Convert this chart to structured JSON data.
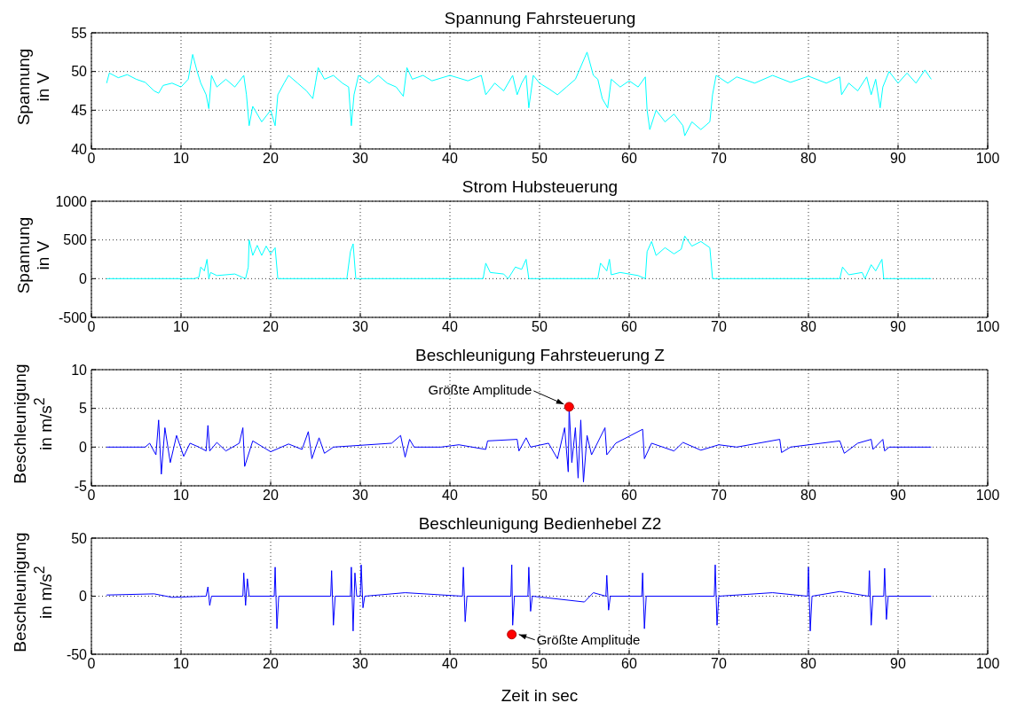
{
  "chart_data": [
    {
      "type": "line",
      "title": "Spannung Fahrsteuerung",
      "ylabel": "Spannung in V",
      "xlim": [
        0,
        100
      ],
      "xticks": [
        0,
        10,
        20,
        30,
        40,
        50,
        60,
        70,
        80,
        90,
        100
      ],
      "ylim": [
        40,
        55
      ],
      "yticks": [
        40,
        45,
        50,
        55
      ],
      "grid": true,
      "marker": "none",
      "line_style": "solid",
      "series": [
        {
          "color": "#00ffff",
          "x": [
            1.7,
            2,
            3,
            4,
            5,
            6,
            7,
            7.5,
            8,
            9,
            10,
            10.8,
            11.3,
            11.8,
            12.2,
            12.8,
            13.1,
            13.4,
            14,
            15,
            16,
            17,
            17.3,
            17.6,
            18,
            19,
            20,
            20.5,
            20.8,
            21.5,
            22,
            23,
            24,
            24.7,
            25,
            25.3,
            26,
            27,
            28,
            28.7,
            29,
            29.3,
            29.8,
            31,
            32,
            33,
            34,
            34.8,
            35.2,
            35.8,
            37,
            38,
            40,
            42,
            43.5,
            44,
            45,
            46,
            47,
            47.5,
            48,
            48.5,
            48.8,
            49.3,
            50,
            51,
            52,
            53,
            54,
            55.3,
            56,
            56.5,
            57,
            57.6,
            58,
            59,
            60,
            61,
            61.8,
            62,
            62.3,
            63,
            64,
            65,
            66,
            66.2,
            67,
            68,
            69,
            69.3,
            69.7,
            71,
            72,
            74,
            76,
            78,
            80,
            82,
            83.5,
            83.7,
            84.5,
            85.5,
            86.5,
            87,
            87.5,
            88,
            88.3,
            89,
            90,
            91,
            92,
            93,
            93.7
          ],
          "values": [
            48.5,
            49.8,
            49.2,
            49.6,
            49,
            48.6,
            47.5,
            47.2,
            48.2,
            48.5,
            48,
            49,
            52.2,
            50,
            48.5,
            47,
            45.2,
            49.5,
            48,
            49,
            48,
            49.5,
            47,
            43,
            45.5,
            43.5,
            45,
            43,
            47,
            48.5,
            49.5,
            48.5,
            47.5,
            46.5,
            48.5,
            50.5,
            49,
            49.5,
            48.5,
            48,
            43,
            47,
            49.5,
            48.5,
            49.5,
            48.5,
            48,
            46.8,
            50.5,
            49,
            49.5,
            48.8,
            49.5,
            48.8,
            49.5,
            47,
            48.5,
            47.5,
            49.5,
            47,
            48.5,
            49.5,
            45.3,
            49.5,
            48.5,
            47.8,
            47,
            48,
            49,
            52.5,
            49.5,
            49,
            46.5,
            45.3,
            49,
            48,
            48.8,
            48,
            49.3,
            45,
            42.5,
            45,
            43.5,
            44.5,
            43,
            41.7,
            43.5,
            42.5,
            43.5,
            47,
            49.5,
            48.5,
            49.3,
            48.5,
            49.5,
            48.6,
            49.4,
            48.5,
            49.3,
            47,
            48.5,
            47.5,
            49.3,
            47,
            49,
            45.3,
            48,
            50,
            48.5,
            49.8,
            48.5,
            50.2,
            49
          ]
        }
      ]
    },
    {
      "type": "line",
      "title": "Strom Hubsteuerung",
      "ylabel": "Spannung in V",
      "xlim": [
        0,
        100
      ],
      "xticks": [
        0,
        10,
        20,
        30,
        40,
        50,
        60,
        70,
        80,
        90,
        100
      ],
      "ylim": [
        -500,
        1000
      ],
      "yticks": [
        -500,
        0,
        500,
        1000
      ],
      "grid": true,
      "marker": "none",
      "line_style": "solid",
      "series": [
        {
          "color": "#00ffff",
          "x": [
            1.7,
            11.5,
            12,
            12.2,
            12.6,
            12.9,
            13.1,
            13.3,
            14,
            16,
            16.8,
            17.2,
            17.5,
            17.6,
            18,
            18.5,
            19,
            19.5,
            20,
            20.5,
            20.8,
            28.5,
            28.9,
            29.2,
            29.5,
            43.7,
            44,
            44.5,
            46,
            46.5,
            47.3,
            48,
            48.5,
            48.8,
            56.5,
            56.8,
            57.5,
            57.8,
            58,
            59,
            61,
            61.8,
            62,
            62.5,
            63,
            64,
            65,
            65.8,
            66.2,
            67,
            68,
            69,
            69.3,
            83.5,
            83.8,
            84.5,
            86,
            86.3,
            87,
            87.5,
            88.2,
            88.4,
            93.7
          ],
          "values": [
            0,
            0,
            20,
            150,
            100,
            250,
            0,
            80,
            40,
            60,
            20,
            0,
            150,
            500,
            300,
            430,
            300,
            420,
            320,
            400,
            0,
            0,
            350,
            450,
            0,
            0,
            200,
            80,
            60,
            0,
            150,
            120,
            250,
            0,
            0,
            200,
            100,
            250,
            50,
            80,
            40,
            0,
            350,
            480,
            300,
            400,
            320,
            380,
            550,
            420,
            480,
            400,
            0,
            0,
            150,
            50,
            80,
            0,
            180,
            100,
            250,
            0,
            0
          ]
        }
      ]
    },
    {
      "type": "line",
      "title": "Beschleunigung Fahrsteuerung Z",
      "ylabel": "Beschleunigung in m/s$^{2}$",
      "xlim": [
        0,
        100
      ],
      "xticks": [
        0,
        10,
        20,
        30,
        40,
        50,
        60,
        70,
        80,
        90,
        100
      ],
      "ylim": [
        -5,
        10
      ],
      "yticks": [
        -5,
        0,
        5,
        10
      ],
      "grid": true,
      "line_style": "solid",
      "annotations": [
        {
          "text": "Größte Amplitude",
          "x": 53.3,
          "y": 5.2
        }
      ],
      "series": [
        {
          "color": "#0000ff",
          "x": [
            1.7,
            6,
            6.5,
            7.2,
            7.5,
            7.8,
            8.2,
            8.8,
            9.5,
            10.3,
            11,
            12,
            12.8,
            13,
            13.2,
            14,
            15,
            16.5,
            16.9,
            17.1,
            18,
            20,
            22,
            23.5,
            24.2,
            24.6,
            25.4,
            26,
            27,
            33.5,
            34.5,
            35,
            35.5,
            36,
            39,
            41,
            44,
            44.2,
            47.5,
            47.7,
            48.5,
            49,
            51,
            52,
            52.8,
            53.2,
            53.3,
            53.6,
            54,
            54.3,
            54.6,
            54.9,
            55.3,
            55.8,
            57.3,
            57.5,
            58.5,
            61.5,
            61.7,
            62.5,
            65,
            66,
            68,
            70,
            72,
            76.8,
            77,
            78,
            83.5,
            84,
            85.5,
            87,
            87.2,
            88.3,
            88.5,
            89,
            93.7
          ],
          "values": [
            0,
            0,
            0.5,
            -1,
            3.5,
            -3.5,
            2.5,
            -2,
            1.5,
            -1.2,
            0.5,
            0,
            -0.5,
            2.8,
            -0.5,
            0.6,
            -0.5,
            0.5,
            2.5,
            -2.5,
            0.8,
            -0.6,
            0.4,
            -0.3,
            2,
            -1.5,
            1.2,
            -0.8,
            0,
            0.5,
            1.5,
            -1.3,
            1,
            0,
            0,
            0.3,
            -0.3,
            0.8,
            1,
            -0.5,
            1.2,
            0,
            0.5,
            -1.5,
            2.5,
            -3.2,
            5.2,
            -2,
            2.5,
            -4,
            3.5,
            -4.5,
            1.5,
            -1,
            2.5,
            -1,
            0.5,
            2.3,
            -1.5,
            0.5,
            -0.5,
            0.6,
            -0.4,
            0.3,
            0,
            1,
            -0.7,
            0,
            0.8,
            -0.8,
            0.5,
            1,
            -0.3,
            1,
            -0.5,
            0,
            0
          ]
        },
        {
          "type": "scatter",
          "color": "#ff0000",
          "marker": "circle",
          "x": [
            53.3
          ],
          "values": [
            5.2
          ]
        }
      ]
    },
    {
      "type": "line",
      "title": "Beschleunigung Bedienhebel Z2",
      "xlabel": "Zeit in sec",
      "ylabel": "Beschleunigung in m/s$^{2}$",
      "xlim": [
        0,
        100
      ],
      "xticks": [
        0,
        10,
        20,
        30,
        40,
        50,
        60,
        70,
        80,
        90,
        100
      ],
      "ylim": [
        -50,
        50
      ],
      "yticks": [
        -50,
        0,
        50
      ],
      "grid": true,
      "line_style": "solid",
      "annotations": [
        {
          "text": "Größte Amplitude",
          "x": 46.9,
          "y": -33
        }
      ],
      "series": [
        {
          "color": "#0000ff",
          "x": [
            1.7,
            7,
            9,
            12.8,
            13,
            13.2,
            13.4,
            16.9,
            17,
            17.2,
            17.4,
            17.6,
            20.4,
            20.5,
            20.7,
            20.9,
            26.7,
            26.8,
            27,
            27.2,
            28.9,
            29,
            29.2,
            29.4,
            29.6,
            30,
            30.1,
            30.3,
            30.5,
            35,
            41.4,
            41.5,
            41.7,
            41.9,
            46.8,
            46.9,
            47,
            47.2,
            48.7,
            48.8,
            49,
            49.2,
            55,
            56,
            57.4,
            57.5,
            57.7,
            57.9,
            61.4,
            61.5,
            61.7,
            61.9,
            69.5,
            69.6,
            69.8,
            70,
            76,
            79.9,
            80,
            80.2,
            80.4,
            83.5,
            86.7,
            86.8,
            87,
            87.2,
            88.4,
            88.5,
            88.7,
            88.9,
            93.7
          ],
          "values": [
            1,
            2,
            -1,
            0,
            8,
            -8,
            0,
            0,
            20,
            -8,
            15,
            0,
            0,
            25,
            -28,
            0,
            0,
            22,
            -25,
            0,
            0,
            25,
            -30,
            20,
            0,
            0,
            27,
            -10,
            0,
            3,
            0,
            25,
            -22,
            0,
            0,
            27,
            -25,
            0,
            0,
            25,
            -13,
            0,
            -5,
            3,
            0,
            18,
            -12,
            0,
            0,
            20,
            -28,
            0,
            0,
            27,
            -25,
            0,
            3,
            0,
            25,
            -30,
            0,
            4,
            0,
            22,
            -25,
            0,
            0,
            24,
            -20,
            0,
            0
          ]
        },
        {
          "type": "scatter",
          "color": "#ff0000",
          "marker": "circle",
          "x": [
            46.9
          ],
          "values": [
            -33
          ]
        }
      ]
    }
  ]
}
